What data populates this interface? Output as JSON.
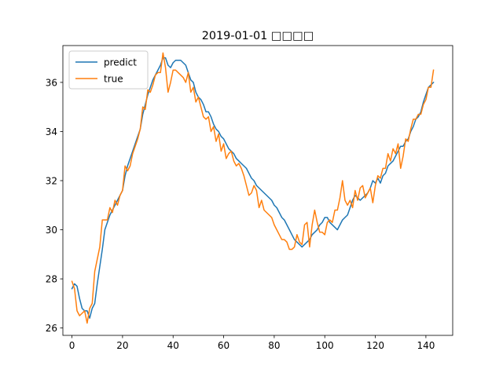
{
  "chart_data": {
    "type": "line",
    "title": "2019-01-01 □□□□",
    "xlabel": "",
    "ylabel": "",
    "xlim": [
      -3.6,
      150.6
    ],
    "ylim": [
      25.7,
      37.5
    ],
    "xticks": [
      0,
      20,
      40,
      60,
      80,
      100,
      120,
      140
    ],
    "yticks": [
      26,
      28,
      30,
      32,
      34,
      36
    ],
    "grid": false,
    "legend_position": "top-left",
    "series": [
      {
        "name": "predict",
        "color": "#1f77b4",
        "x": [
          0,
          1,
          2,
          3,
          4,
          5,
          6,
          7,
          8,
          9,
          10,
          11,
          12,
          13,
          14,
          15,
          16,
          17,
          18,
          19,
          20,
          21,
          22,
          23,
          24,
          25,
          26,
          27,
          28,
          29,
          30,
          31,
          32,
          33,
          34,
          35,
          36,
          37,
          38,
          39,
          40,
          41,
          42,
          43,
          44,
          45,
          46,
          47,
          48,
          49,
          50,
          51,
          52,
          53,
          54,
          55,
          56,
          57,
          58,
          59,
          60,
          61,
          62,
          63,
          64,
          65,
          66,
          67,
          68,
          69,
          70,
          71,
          72,
          73,
          74,
          75,
          76,
          77,
          78,
          79,
          80,
          81,
          82,
          83,
          84,
          85,
          86,
          87,
          88,
          89,
          90,
          91,
          92,
          93,
          94,
          95,
          96,
          97,
          98,
          99,
          100,
          101,
          102,
          103,
          104,
          105,
          106,
          107,
          108,
          109,
          110,
          111,
          112,
          113,
          114,
          115,
          116,
          117,
          118,
          119,
          120,
          121,
          122,
          123,
          124,
          125,
          126,
          127,
          128,
          129,
          130,
          131,
          132,
          133,
          134,
          135,
          136,
          137,
          138,
          139,
          140,
          141,
          142,
          143
        ],
        "y": [
          27.6,
          27.8,
          27.7,
          27.2,
          26.8,
          26.7,
          26.7,
          26.4,
          26.8,
          27.0,
          27.8,
          28.5,
          29.2,
          30.0,
          30.3,
          30.6,
          30.8,
          31.0,
          31.2,
          31.4,
          31.6,
          32.2,
          32.6,
          32.9,
          33.2,
          33.5,
          33.8,
          34.1,
          34.7,
          35.1,
          35.5,
          35.8,
          36.1,
          36.3,
          36.5,
          36.7,
          37.0,
          37.0,
          36.7,
          36.6,
          36.8,
          36.9,
          36.9,
          36.9,
          36.8,
          36.7,
          36.4,
          36.1,
          36.0,
          35.6,
          35.4,
          35.3,
          35.1,
          34.8,
          34.8,
          34.6,
          34.3,
          34.1,
          34.0,
          33.8,
          33.7,
          33.5,
          33.3,
          33.2,
          33.1,
          32.9,
          32.8,
          32.7,
          32.6,
          32.5,
          32.3,
          32.1,
          32.0,
          31.8,
          31.7,
          31.6,
          31.5,
          31.4,
          31.3,
          31.2,
          31.0,
          30.9,
          30.7,
          30.5,
          30.4,
          30.2,
          30.0,
          29.8,
          29.6,
          29.5,
          29.4,
          29.3,
          29.4,
          29.5,
          29.6,
          29.8,
          29.9,
          30.0,
          30.2,
          30.3,
          30.5,
          30.5,
          30.3,
          30.2,
          30.1,
          30.0,
          30.2,
          30.4,
          30.5,
          30.6,
          30.9,
          31.2,
          31.4,
          31.3,
          31.2,
          31.3,
          31.4,
          31.5,
          31.7,
          32.0,
          31.9,
          32.1,
          31.9,
          32.2,
          32.3,
          32.6,
          32.7,
          32.8,
          33.0,
          33.2,
          33.4,
          33.4,
          33.6,
          33.7,
          34.0,
          34.2,
          34.5,
          34.6,
          34.8,
          35.2,
          35.5,
          35.8,
          35.9,
          36.0
        ]
      },
      {
        "name": "true",
        "color": "#ff7f0e",
        "x": [
          0,
          1,
          2,
          3,
          4,
          5,
          6,
          7,
          8,
          9,
          10,
          11,
          12,
          13,
          14,
          15,
          16,
          17,
          18,
          19,
          20,
          21,
          22,
          23,
          24,
          25,
          26,
          27,
          28,
          29,
          30,
          31,
          32,
          33,
          34,
          35,
          36,
          37,
          38,
          39,
          40,
          41,
          42,
          43,
          44,
          45,
          46,
          47,
          48,
          49,
          50,
          51,
          52,
          53,
          54,
          55,
          56,
          57,
          58,
          59,
          60,
          61,
          62,
          63,
          64,
          65,
          66,
          67,
          68,
          69,
          70,
          71,
          72,
          73,
          74,
          75,
          76,
          77,
          78,
          79,
          80,
          81,
          82,
          83,
          84,
          85,
          86,
          87,
          88,
          89,
          90,
          91,
          92,
          93,
          94,
          95,
          96,
          97,
          98,
          99,
          100,
          101,
          102,
          103,
          104,
          105,
          106,
          107,
          108,
          109,
          110,
          111,
          112,
          113,
          114,
          115,
          116,
          117,
          118,
          119,
          120,
          121,
          122,
          123,
          124,
          125,
          126,
          127,
          128,
          129,
          130,
          131,
          132,
          133,
          134,
          135,
          136,
          137,
          138,
          139,
          140,
          141,
          142,
          143
        ],
        "y": [
          27.9,
          27.6,
          26.7,
          26.5,
          26.6,
          26.7,
          26.2,
          26.8,
          27.0,
          28.3,
          28.8,
          29.3,
          30.4,
          30.4,
          30.4,
          30.9,
          30.7,
          31.2,
          31.0,
          31.4,
          31.6,
          32.6,
          32.4,
          32.6,
          33.1,
          33.4,
          33.7,
          34.1,
          35.0,
          34.9,
          35.7,
          35.6,
          35.9,
          36.3,
          36.4,
          36.4,
          37.2,
          36.6,
          35.6,
          36.0,
          36.5,
          36.5,
          36.4,
          36.3,
          36.2,
          36.0,
          36.4,
          35.6,
          35.8,
          35.2,
          35.4,
          35.0,
          34.6,
          34.5,
          34.6,
          34.0,
          34.2,
          33.6,
          33.9,
          33.2,
          33.5,
          32.9,
          33.1,
          33.2,
          32.8,
          32.6,
          32.7,
          32.5,
          32.2,
          31.8,
          31.4,
          31.5,
          31.8,
          31.6,
          30.9,
          31.2,
          30.8,
          30.7,
          30.6,
          30.5,
          30.2,
          30.0,
          29.8,
          29.6,
          29.6,
          29.5,
          29.2,
          29.2,
          29.3,
          29.8,
          29.5,
          29.4,
          30.2,
          30.3,
          29.3,
          30.2,
          30.8,
          30.3,
          29.9,
          29.9,
          29.8,
          30.3,
          30.4,
          30.3,
          30.8,
          30.8,
          31.3,
          32.0,
          31.2,
          31.0,
          31.2,
          30.9,
          31.6,
          31.2,
          31.7,
          31.8,
          31.3,
          31.5,
          31.7,
          31.1,
          31.8,
          32.2,
          32.1,
          32.5,
          32.5,
          33.1,
          32.8,
          33.3,
          33.1,
          33.5,
          32.5,
          33.0,
          33.7,
          33.6,
          34.1,
          34.5,
          34.5,
          34.7,
          34.7,
          35.1,
          35.3,
          35.8,
          35.8,
          36.5
        ]
      }
    ]
  }
}
